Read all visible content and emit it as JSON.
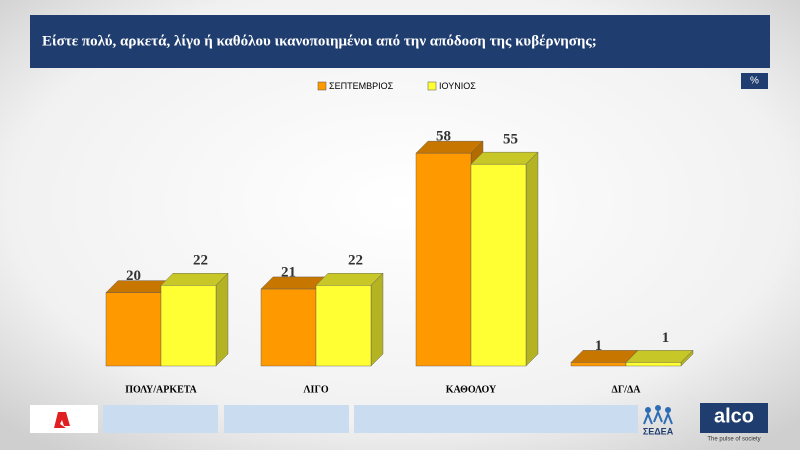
{
  "chart_data": {
    "type": "bar3d",
    "title": "Είστε πολύ, αρκετά, λίγο ή καθόλου ικανοποιημένοι από την  απόδοση της κυβέρνησης;",
    "unit_badge": "%",
    "categories": [
      "ΠΟΛΥ/ΑΡΚΕΤΑ",
      "ΛΙΓΟ",
      "ΚΑΘΟΛΟΥ",
      "ΔΓ/ΔΑ"
    ],
    "series": [
      {
        "name": "ΣΕΠΤΕΜΒΡΙΟΣ",
        "color": "#ff9900",
        "values": [
          20,
          21,
          58,
          1
        ]
      },
      {
        "name": "ΙΟΥΝΙΟΣ",
        "color": "#ffff33",
        "values": [
          22,
          22,
          55,
          1
        ]
      }
    ],
    "legend": "top"
  },
  "footer": {
    "brand": "alco",
    "tagline": "The pulse of society",
    "partner": "ΣΕΔΕΑ"
  }
}
